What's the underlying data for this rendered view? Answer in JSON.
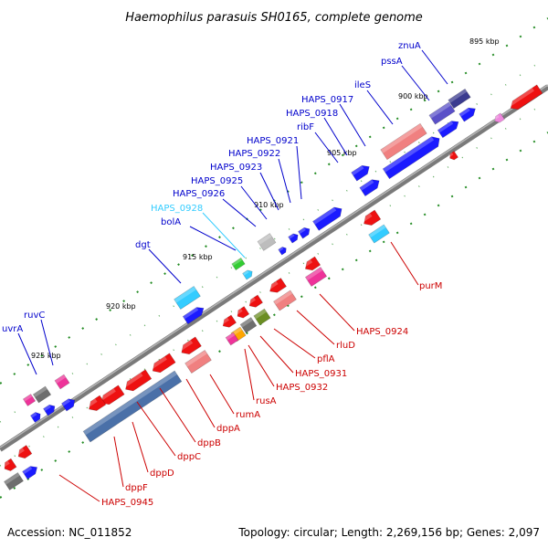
{
  "title": "Haemophilus parasuis SH0165, complete genome",
  "footer": {
    "accession": "Accession: NC_011852",
    "summary": "Topology: circular; Length: 2,269,156 bp; Genes: 2,097"
  },
  "colors": {
    "forward_label": "#0000cc",
    "reverse_label": "#cc0000",
    "highlight_label": "#33ccff",
    "backbone": "#808080",
    "dotted_scale": "#228b22"
  },
  "ticks": [
    "895 kbp",
    "900 kbp",
    "905 kbp",
    "910 kbp",
    "915 kbp",
    "920 kbp",
    "925 kbp"
  ],
  "forward_labels": [
    "znuA",
    "pssA",
    "ileS",
    "HAPS_0917",
    "HAPS_0918",
    "ribF",
    "HAPS_0921",
    "HAPS_0922",
    "HAPS_0923",
    "HAPS_0925",
    "HAPS_0926",
    "HAPS_0928",
    "bolA",
    "dgt",
    "ruvC",
    "uvrA"
  ],
  "reverse_labels": [
    "purM",
    "HAPS_0924",
    "rluD",
    "pflA",
    "HAPS_0931",
    "HAPS_0932",
    "rusA",
    "rumA",
    "dppA",
    "dppB",
    "dppC",
    "dppD",
    "dppF",
    "HAPS_0945"
  ]
}
